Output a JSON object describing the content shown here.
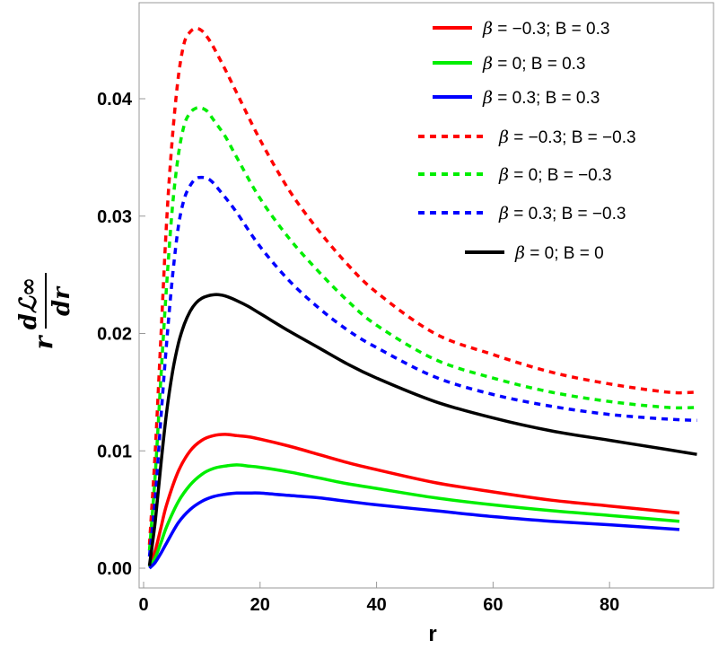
{
  "chart_data": {
    "type": "line",
    "title": "",
    "xlabel": "r",
    "ylabel": {
      "prefix": "r",
      "numerator": "dℒ∞",
      "denominator": "dr"
    },
    "xlim": [
      0,
      96
    ],
    "ylim": [
      0,
      0.0475
    ],
    "xticks": [
      0,
      20,
      40,
      60,
      80
    ],
    "xtick_labels": [
      "0",
      "20",
      "40",
      "60",
      "80"
    ],
    "yticks": [
      0,
      0.01,
      0.02,
      0.03,
      0.04
    ],
    "ytick_labels": [
      "0.00",
      "0.01",
      "0.02",
      "0.03",
      "0.04"
    ],
    "legend_position": "top-right",
    "series": [
      {
        "name": "β = −0.3; B = 0.3",
        "color": "#ff0000",
        "dash": "solid",
        "x": [
          1,
          2,
          3,
          4,
          6,
          8,
          10,
          12,
          14,
          16,
          18,
          20,
          25,
          30,
          35,
          40,
          50,
          60,
          70,
          80,
          92
        ],
        "y": [
          0.0002,
          0.0015,
          0.0035,
          0.0055,
          0.0083,
          0.01,
          0.0109,
          0.0113,
          0.0114,
          0.0113,
          0.0112,
          0.011,
          0.0104,
          0.0097,
          0.009,
          0.0084,
          0.0073,
          0.0065,
          0.0058,
          0.0053,
          0.0047
        ]
      },
      {
        "name": "β = 0; B = 0.3",
        "color": "#00ee00",
        "dash": "solid",
        "x": [
          1,
          2,
          3,
          4,
          6,
          8,
          10,
          12,
          14,
          16,
          18,
          20,
          25,
          30,
          35,
          40,
          50,
          60,
          70,
          80,
          92
        ],
        "y": [
          0.0001,
          0.0009,
          0.0022,
          0.0036,
          0.0057,
          0.0071,
          0.008,
          0.0085,
          0.0087,
          0.0088,
          0.0087,
          0.0086,
          0.0082,
          0.0077,
          0.0072,
          0.0068,
          0.006,
          0.0054,
          0.0049,
          0.0045,
          0.004
        ]
      },
      {
        "name": "β = 0.3; B = 0.3",
        "color": "#0000ff",
        "dash": "solid",
        "x": [
          1,
          2,
          3,
          4,
          6,
          8,
          10,
          12,
          14,
          16,
          18,
          20,
          25,
          30,
          35,
          40,
          50,
          60,
          70,
          80,
          92
        ],
        "y": [
          0.0,
          0.0005,
          0.0013,
          0.0022,
          0.0039,
          0.005,
          0.0057,
          0.0061,
          0.0063,
          0.0064,
          0.0064,
          0.0064,
          0.0062,
          0.006,
          0.0057,
          0.0054,
          0.0049,
          0.0044,
          0.004,
          0.0037,
          0.0033
        ]
      },
      {
        "name": "β = −0.3; B = −0.3",
        "color": "#ff0000",
        "dash": "dashed",
        "x": [
          1,
          2,
          3,
          4,
          5,
          6,
          7,
          8,
          9,
          10,
          11,
          12,
          14,
          16,
          20,
          25,
          30,
          35,
          40,
          50,
          60,
          70,
          80,
          90,
          95
        ],
        "y": [
          0.002,
          0.01,
          0.02,
          0.03,
          0.037,
          0.042,
          0.0448,
          0.0457,
          0.046,
          0.0458,
          0.0452,
          0.0444,
          0.0425,
          0.0405,
          0.0365,
          0.0322,
          0.0288,
          0.0259,
          0.0235,
          0.02,
          0.0182,
          0.0167,
          0.0157,
          0.015,
          0.015
        ]
      },
      {
        "name": "β = 0; B = −0.3",
        "color": "#00ee00",
        "dash": "dashed",
        "x": [
          1,
          2,
          3,
          4,
          5,
          6,
          7,
          8,
          9,
          10,
          11,
          12,
          14,
          16,
          20,
          25,
          30,
          35,
          40,
          50,
          60,
          70,
          80,
          90,
          95
        ],
        "y": [
          0.0015,
          0.008,
          0.0165,
          0.0245,
          0.031,
          0.0353,
          0.0378,
          0.0388,
          0.0392,
          0.0392,
          0.0389,
          0.0382,
          0.0368,
          0.035,
          0.0315,
          0.0281,
          0.0253,
          0.0228,
          0.0207,
          0.0178,
          0.0162,
          0.015,
          0.0142,
          0.0137,
          0.0137
        ]
      },
      {
        "name": "β = 0.3; B = −0.3",
        "color": "#0000ff",
        "dash": "dashed",
        "x": [
          1,
          2,
          3,
          4,
          5,
          6,
          7,
          8,
          9,
          10,
          11,
          12,
          14,
          16,
          20,
          25,
          30,
          35,
          40,
          50,
          60,
          70,
          80,
          90,
          95
        ],
        "y": [
          0.001,
          0.006,
          0.013,
          0.0195,
          0.025,
          0.0292,
          0.0315,
          0.0326,
          0.0332,
          0.0333,
          0.0332,
          0.0328,
          0.0316,
          0.0303,
          0.0274,
          0.0245,
          0.0222,
          0.0203,
          0.0188,
          0.0163,
          0.0148,
          0.0138,
          0.0131,
          0.0127,
          0.0126
        ]
      },
      {
        "name": "β = 0; B = 0",
        "color": "#000000",
        "dash": "solid",
        "x": [
          1,
          2,
          3,
          4,
          5,
          6,
          7,
          8,
          9,
          10,
          11,
          12,
          13,
          14,
          16,
          18,
          20,
          25,
          30,
          35,
          40,
          50,
          60,
          70,
          80,
          90,
          95
        ],
        "y": [
          0.0002,
          0.004,
          0.009,
          0.0135,
          0.0168,
          0.0192,
          0.0208,
          0.0219,
          0.0226,
          0.023,
          0.0232,
          0.0233,
          0.0233,
          0.0232,
          0.0228,
          0.0223,
          0.0217,
          0.0202,
          0.0188,
          0.0174,
          0.0162,
          0.0142,
          0.0128,
          0.0117,
          0.0109,
          0.0101,
          0.0097
        ]
      }
    ]
  }
}
